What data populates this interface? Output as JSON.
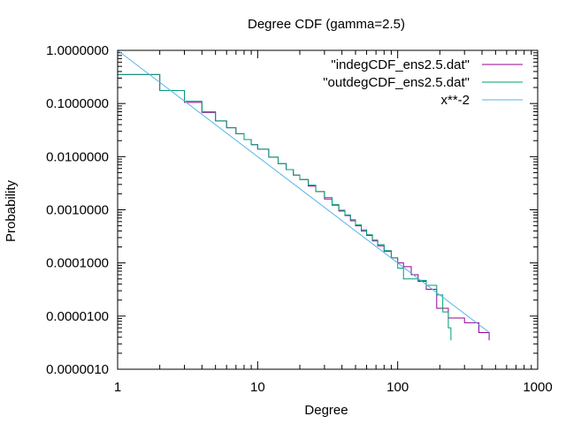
{
  "chart_data": {
    "type": "line",
    "title": "Degree CDF (gamma=2.5)",
    "xlabel": "Degree",
    "ylabel": "Probability",
    "xscale": "log",
    "yscale": "log",
    "xlim": [
      1,
      1000
    ],
    "ylim": [
      1e-06,
      1
    ],
    "grid": false,
    "legend_position": "top-right",
    "x_ticks": [
      {
        "value": 1,
        "label": "1"
      },
      {
        "value": 10,
        "label": "10"
      },
      {
        "value": 100,
        "label": "100"
      },
      {
        "value": 1000,
        "label": "1000"
      }
    ],
    "y_ticks": [
      {
        "value": 1,
        "label": "1.0000000"
      },
      {
        "value": 0.1,
        "label": "0.1000000"
      },
      {
        "value": 0.01,
        "label": "0.0100000"
      },
      {
        "value": 0.001,
        "label": "0.0010000"
      },
      {
        "value": 0.0001,
        "label": "0.0001000"
      },
      {
        "value": 1e-05,
        "label": "0.0000100"
      },
      {
        "value": 1e-06,
        "label": "0.0000010"
      }
    ],
    "series": [
      {
        "name": "\"indegCDF_ens2.5.dat\"",
        "color": "#940094",
        "step": true,
        "points": [
          [
            1,
            0.35
          ],
          [
            2,
            0.175
          ],
          [
            3,
            0.105
          ],
          [
            4,
            0.068
          ],
          [
            5,
            0.047
          ],
          [
            6,
            0.035
          ],
          [
            7,
            0.027
          ],
          [
            8,
            0.021
          ],
          [
            9,
            0.0168
          ],
          [
            10,
            0.0138
          ],
          [
            12,
            0.0098
          ],
          [
            14,
            0.0074
          ],
          [
            16,
            0.0057
          ],
          [
            18,
            0.0045
          ],
          [
            20,
            0.0037
          ],
          [
            23,
            0.0028
          ],
          [
            26,
            0.0022
          ],
          [
            30,
            0.0016
          ],
          [
            34,
            0.00122
          ],
          [
            38,
            0.00095
          ],
          [
            42,
            0.00078
          ],
          [
            46,
            0.00062
          ],
          [
            50,
            0.0005
          ],
          [
            55,
            0.0004
          ],
          [
            60,
            0.00033
          ],
          [
            66,
            0.00026
          ],
          [
            72,
            0.00021
          ],
          [
            80,
            0.000165
          ],
          [
            90,
            0.000125
          ],
          [
            100,
            0.0001
          ],
          [
            110,
            8.5e-05
          ],
          [
            125,
            6e-05
          ],
          [
            140,
            4.5e-05
          ],
          [
            160,
            3.2e-05
          ],
          [
            190,
            1.4e-05
          ],
          [
            230,
            9.2e-06
          ],
          [
            300,
            7.5e-06
          ],
          [
            380,
            4.9e-06
          ],
          [
            450,
            3.5e-06
          ]
        ]
      },
      {
        "name": "\"outdegCDF_ens2.5.dat\"",
        "color": "#009e73",
        "step": true,
        "points": [
          [
            1,
            0.35
          ],
          [
            2,
            0.175
          ],
          [
            3,
            0.11
          ],
          [
            4,
            0.07
          ],
          [
            5,
            0.047
          ],
          [
            6,
            0.035
          ],
          [
            7,
            0.027
          ],
          [
            8,
            0.021
          ],
          [
            9,
            0.0168
          ],
          [
            10,
            0.0138
          ],
          [
            12,
            0.0098
          ],
          [
            14,
            0.0074
          ],
          [
            16,
            0.0057
          ],
          [
            18,
            0.0045
          ],
          [
            20,
            0.0037
          ],
          [
            23,
            0.0029
          ],
          [
            26,
            0.0022
          ],
          [
            30,
            0.0017
          ],
          [
            34,
            0.00125
          ],
          [
            38,
            0.00098
          ],
          [
            42,
            0.0008
          ],
          [
            46,
            0.00065
          ],
          [
            50,
            0.00052
          ],
          [
            55,
            0.00042
          ],
          [
            60,
            0.00034
          ],
          [
            66,
            0.00027
          ],
          [
            72,
            0.00022
          ],
          [
            80,
            0.00017
          ],
          [
            90,
            0.000125
          ],
          [
            100,
            8e-05
          ],
          [
            110,
            5e-05
          ],
          [
            140,
            4.7e-05
          ],
          [
            160,
            3.8e-05
          ],
          [
            190,
            2.5e-05
          ],
          [
            210,
            1.2e-05
          ],
          [
            230,
            6e-06
          ],
          [
            240,
            3.5e-06
          ]
        ]
      },
      {
        "name": "x**-2",
        "color": "#56b4e9",
        "step": false,
        "points": [
          [
            1,
            1
          ],
          [
            450,
            4.94e-06
          ]
        ]
      }
    ]
  }
}
